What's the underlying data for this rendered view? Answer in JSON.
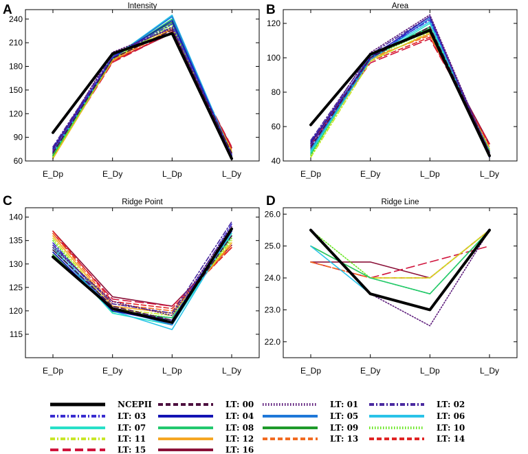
{
  "chart_data": [
    {
      "label": "A",
      "type": "line",
      "title": "Intensity",
      "categories": [
        "E_Dp",
        "E_Dy",
        "L_Dp",
        "L_Dy"
      ],
      "yticks": [
        "60",
        "90",
        "120",
        "150",
        "180",
        "210",
        "240"
      ],
      "ylim": [
        60,
        252
      ],
      "series": [
        {
          "name": "NCEPII",
          "values": [
            96,
            196,
            222,
            63
          ]
        },
        {
          "name": "LT: 00",
          "values": [
            70,
            190,
            226,
            70
          ]
        },
        {
          "name": "LT: 01",
          "values": [
            74,
            198,
            228,
            65
          ]
        },
        {
          "name": "LT: 02",
          "values": [
            78,
            194,
            230,
            66
          ]
        },
        {
          "name": "LT: 03",
          "values": [
            72,
            192,
            234,
            68
          ]
        },
        {
          "name": "LT: 04",
          "values": [
            76,
            191,
            238,
            67
          ]
        },
        {
          "name": "LT: 05",
          "values": [
            74,
            190,
            243,
            66
          ]
        },
        {
          "name": "LT: 06",
          "values": [
            71,
            190,
            245,
            68
          ]
        },
        {
          "name": "LT: 07",
          "values": [
            70,
            191,
            244,
            66
          ]
        },
        {
          "name": "LT: 08",
          "values": [
            68,
            190,
            240,
            67
          ]
        },
        {
          "name": "LT: 09",
          "values": [
            67,
            193,
            236,
            65
          ]
        },
        {
          "name": "LT: 10",
          "values": [
            66,
            189,
            233,
            70
          ]
        },
        {
          "name": "LT: 11",
          "values": [
            64,
            190,
            230,
            71
          ]
        },
        {
          "name": "LT: 12",
          "values": [
            63,
            188,
            228,
            72
          ]
        },
        {
          "name": "LT: 13",
          "values": [
            65,
            187,
            227,
            73
          ]
        },
        {
          "name": "LT: 14",
          "values": [
            69,
            186,
            224,
            75
          ]
        },
        {
          "name": "LT: 15",
          "values": [
            66,
            185,
            223,
            78
          ]
        },
        {
          "name": "LT: 16",
          "values": [
            72,
            187,
            222,
            77
          ]
        }
      ]
    },
    {
      "label": "B",
      "type": "line",
      "title": "Area",
      "categories": [
        "E_Dp",
        "E_Dy",
        "L_Dp",
        "L_Dy"
      ],
      "yticks": [
        "40",
        "60",
        "80",
        "100",
        "120"
      ],
      "ylim": [
        40,
        128
      ],
      "series": [
        {
          "name": "NCEPII",
          "values": [
            61,
            102,
            116,
            43
          ]
        },
        {
          "name": "LT: 00",
          "values": [
            48,
            100,
            118,
            45
          ]
        },
        {
          "name": "LT: 01",
          "values": [
            50,
            103,
            125,
            44
          ]
        },
        {
          "name": "LT: 02",
          "values": [
            52,
            102,
            124,
            43
          ]
        },
        {
          "name": "LT: 03",
          "values": [
            49,
            101,
            122,
            45
          ]
        },
        {
          "name": "LT: 04",
          "values": [
            51,
            100,
            124,
            42
          ]
        },
        {
          "name": "LT: 05",
          "values": [
            47,
            99,
            123,
            44
          ]
        },
        {
          "name": "LT: 06",
          "values": [
            46,
            100,
            121,
            45
          ]
        },
        {
          "name": "LT: 07",
          "values": [
            45,
            99,
            120,
            44
          ]
        },
        {
          "name": "LT: 08",
          "values": [
            44,
            101,
            118,
            46
          ]
        },
        {
          "name": "LT: 09",
          "values": [
            45,
            102,
            117,
            43
          ]
        },
        {
          "name": "LT: 10",
          "values": [
            43,
            100,
            116,
            45
          ]
        },
        {
          "name": "LT: 11",
          "values": [
            42,
            98,
            115,
            47
          ]
        },
        {
          "name": "LT: 12",
          "values": [
            44,
            99,
            114,
            46
          ]
        },
        {
          "name": "LT: 13",
          "values": [
            46,
            100,
            113,
            48
          ]
        },
        {
          "name": "LT: 14",
          "values": [
            47,
            98,
            112,
            49
          ]
        },
        {
          "name": "LT: 15",
          "values": [
            49,
            97,
            111,
            50
          ]
        },
        {
          "name": "LT: 16",
          "values": [
            50,
            99,
            114,
            50
          ]
        }
      ]
    },
    {
      "label": "C",
      "type": "line",
      "title": "Ridge Point",
      "categories": [
        "E_Dp",
        "E_Dy",
        "L_Dp",
        "L_Dy"
      ],
      "yticks": [
        "115",
        "120",
        "125",
        "130",
        "135",
        "140"
      ],
      "ylim": [
        110,
        142
      ],
      "series": [
        {
          "name": "NCEPII",
          "values": [
            131.5,
            120.5,
            117.5,
            137.5
          ]
        },
        {
          "name": "LT: 00",
          "values": [
            133,
            121,
            118,
            136
          ]
        },
        {
          "name": "LT: 01",
          "values": [
            133.5,
            122,
            119,
            138
          ]
        },
        {
          "name": "LT: 02",
          "values": [
            134,
            121.5,
            119.5,
            139
          ]
        },
        {
          "name": "LT: 03",
          "values": [
            134.5,
            120.5,
            118,
            138.5
          ]
        },
        {
          "name": "LT: 04",
          "values": [
            132.5,
            120,
            117.5,
            137
          ]
        },
        {
          "name": "LT: 05",
          "values": [
            133,
            120.5,
            117,
            137.5
          ]
        },
        {
          "name": "LT: 06",
          "values": [
            134,
            120,
            116,
            137
          ]
        },
        {
          "name": "LT: 07",
          "values": [
            133.5,
            119.5,
            117,
            136.5
          ]
        },
        {
          "name": "LT: 08",
          "values": [
            132.5,
            119.8,
            118.5,
            136
          ]
        },
        {
          "name": "LT: 09",
          "values": [
            132,
            120,
            118,
            137
          ]
        },
        {
          "name": "LT: 10",
          "values": [
            135,
            120.2,
            118.5,
            135.5
          ]
        },
        {
          "name": "LT: 11",
          "values": [
            135.5,
            120.5,
            119,
            135
          ]
        },
        {
          "name": "LT: 12",
          "values": [
            136,
            121,
            119.5,
            134.5
          ]
        },
        {
          "name": "LT: 13",
          "values": [
            136.5,
            121.5,
            120,
            134
          ]
        },
        {
          "name": "LT: 14",
          "values": [
            137,
            122,
            120.5,
            133.5
          ]
        },
        {
          "name": "LT: 15",
          "values": [
            136.5,
            122.5,
            121,
            133.5
          ]
        },
        {
          "name": "LT: 16",
          "values": [
            137,
            123,
            121,
            134
          ]
        }
      ]
    },
    {
      "label": "D",
      "type": "line",
      "title": "Ridge Line",
      "categories": [
        "E_Dp",
        "E_Dy",
        "L_Dp",
        "L_Dy"
      ],
      "yticks": [
        "22.0",
        "23.0",
        "24.0",
        "25.0",
        "26.0"
      ],
      "ylim": [
        21.5,
        26.2
      ],
      "series": [
        {
          "name": "NCEPII",
          "values": [
            25.5,
            23.5,
            23.0,
            25.5
          ]
        },
        {
          "name": "LT: 00",
          "values": [
            25.5,
            23.5,
            23.0,
            25.5
          ]
        },
        {
          "name": "LT: 01",
          "values": [
            25.5,
            23.5,
            22.5,
            25.5
          ]
        },
        {
          "name": "LT: 02",
          "values": [
            25.5,
            23.5,
            23.0,
            25.5
          ]
        },
        {
          "name": "LT: 03",
          "values": [
            25.5,
            23.5,
            23.0,
            25.5
          ]
        },
        {
          "name": "LT: 04",
          "values": [
            25.5,
            23.5,
            23.0,
            25.5
          ]
        },
        {
          "name": "LT: 05",
          "values": [
            25.5,
            23.5,
            23.0,
            25.5
          ]
        },
        {
          "name": "LT: 06",
          "values": [
            25.0,
            23.5,
            23.0,
            25.5
          ]
        },
        {
          "name": "LT: 07",
          "values": [
            25.5,
            23.5,
            23.0,
            25.5
          ]
        },
        {
          "name": "LT: 08",
          "values": [
            25.0,
            24.0,
            23.5,
            25.5
          ]
        },
        {
          "name": "LT: 09",
          "values": [
            25.5,
            23.5,
            23.0,
            25.5
          ]
        },
        {
          "name": "LT: 10",
          "values": [
            25.5,
            24.0,
            23.5,
            25.5
          ]
        },
        {
          "name": "LT: 11",
          "values": [
            25.0,
            24.0,
            24.0,
            25.5
          ]
        },
        {
          "name": "LT: 12",
          "values": [
            25.0,
            24.0,
            24.0,
            25.5
          ]
        },
        {
          "name": "LT: 13",
          "values": [
            24.5,
            24.0,
            24.0,
            25.5
          ]
        },
        {
          "name": "LT: 14",
          "values": [
            24.5,
            24.0,
            24.0,
            25.5
          ]
        },
        {
          "name": "LT: 15",
          "values": [
            24.5,
            24.0,
            24.5,
            25.0
          ]
        },
        {
          "name": "LT: 16",
          "values": [
            24.5,
            24.5,
            24.0,
            25.5
          ]
        }
      ]
    }
  ],
  "legend": [
    {
      "name": "NCEPII",
      "color": "#000000",
      "dash": "solid"
    },
    {
      "name": "LT: 00",
      "color": "#4d0f3f",
      "dash": "dash"
    },
    {
      "name": "LT: 01",
      "color": "#5b1a7a",
      "dash": "dot"
    },
    {
      "name": "LT: 02",
      "color": "#4a2aa0",
      "dash": "dashdot"
    },
    {
      "name": "LT: 03",
      "color": "#3a2dd0",
      "dash": "dashdot"
    },
    {
      "name": "LT: 04",
      "color": "#1414b4",
      "dash": "solid"
    },
    {
      "name": "LT: 05",
      "color": "#1f78d8",
      "dash": "solid"
    },
    {
      "name": "LT: 06",
      "color": "#2ac3e8",
      "dash": "solid"
    },
    {
      "name": "LT: 07",
      "color": "#28e0c8",
      "dash": "solid"
    },
    {
      "name": "LT: 08",
      "color": "#22c86e",
      "dash": "solid"
    },
    {
      "name": "LT: 09",
      "color": "#1e9a2a",
      "dash": "solid"
    },
    {
      "name": "LT: 10",
      "color": "#66e61e",
      "dash": "dot"
    },
    {
      "name": "LT: 11",
      "color": "#c8e628",
      "dash": "dashdot"
    },
    {
      "name": "LT: 12",
      "color": "#f5a623",
      "dash": "solid"
    },
    {
      "name": "LT: 13",
      "color": "#f26b21",
      "dash": "dash"
    },
    {
      "name": "LT: 14",
      "color": "#e02424",
      "dash": "dash"
    },
    {
      "name": "LT: 15",
      "color": "#d0143c",
      "dash": "longdash"
    },
    {
      "name": "LT: 16",
      "color": "#8a1038",
      "dash": "solid"
    }
  ]
}
